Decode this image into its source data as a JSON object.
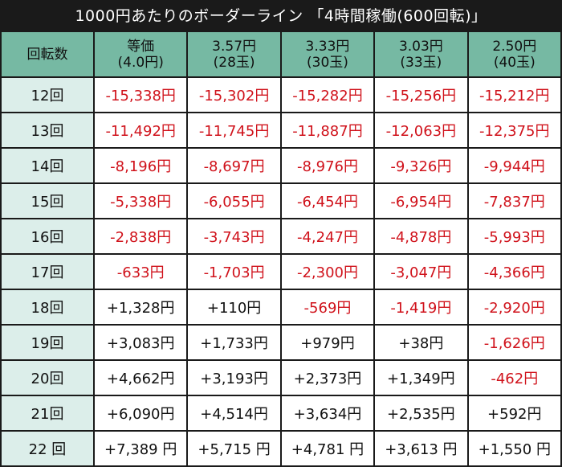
{
  "title": "1000円あたりのボーダーライン 「4時間稼働(600回転)」",
  "table": {
    "corner": "回転数",
    "columns": [
      {
        "line1": "等価",
        "line2": "(4.0円)"
      },
      {
        "line1": "3.57円",
        "line2": "(28玉)"
      },
      {
        "line1": "3.33円",
        "line2": "(30玉)"
      },
      {
        "line1": "3.03円",
        "line2": "(33玉)"
      },
      {
        "line1": "2.50円",
        "line2": "(40玉)"
      }
    ],
    "rows": [
      {
        "label": "12回",
        "values": [
          "-15,338円",
          "-15,302円",
          "-15,282円",
          "-15,256円",
          "-15,212円"
        ]
      },
      {
        "label": "13回",
        "values": [
          "-11,492円",
          "-11,745円",
          "-11,887円",
          "-12,063円",
          "-12,375円"
        ]
      },
      {
        "label": "14回",
        "values": [
          "-8,196円",
          "-8,697円",
          "-8,976円",
          "-9,326円",
          "-9,944円"
        ]
      },
      {
        "label": "15回",
        "values": [
          "-5,338円",
          "-6,055円",
          "-6,454円",
          "-6,954円",
          "-7,837円"
        ]
      },
      {
        "label": "16回",
        "values": [
          "-2,838円",
          "-3,743円",
          "-4,247円",
          "-4,878円",
          "-5,993円"
        ]
      },
      {
        "label": "17回",
        "values": [
          "-633円",
          "-1,703円",
          "-2,300円",
          "-3,047円",
          "-4,366円"
        ]
      },
      {
        "label": "18回",
        "values": [
          "+1,328円",
          "+110円",
          "-569円",
          "-1,419円",
          "-2,920円"
        ]
      },
      {
        "label": "19回",
        "values": [
          "+3,083円",
          "+1,733円",
          "+979円",
          "+38円",
          "-1,626円"
        ]
      },
      {
        "label": "20回",
        "values": [
          "+4,662円",
          "+3,193円",
          "+2,373円",
          "+1,349円",
          "-462円"
        ]
      },
      {
        "label": "21回",
        "values": [
          "+6,090円",
          "+4,514円",
          "+3,634円",
          "+2,535円",
          "+592円"
        ]
      },
      {
        "label": "22 回",
        "values": [
          "+7,389 円",
          "+5,715 円",
          "+4,781 円",
          "+3,613 円",
          "+1,550 円"
        ]
      }
    ]
  },
  "colors": {
    "background": "#1a1a1a",
    "header": "#76b9a3",
    "row_header": "#dceeea",
    "negative": "#d0121b",
    "positive": "#111111"
  }
}
